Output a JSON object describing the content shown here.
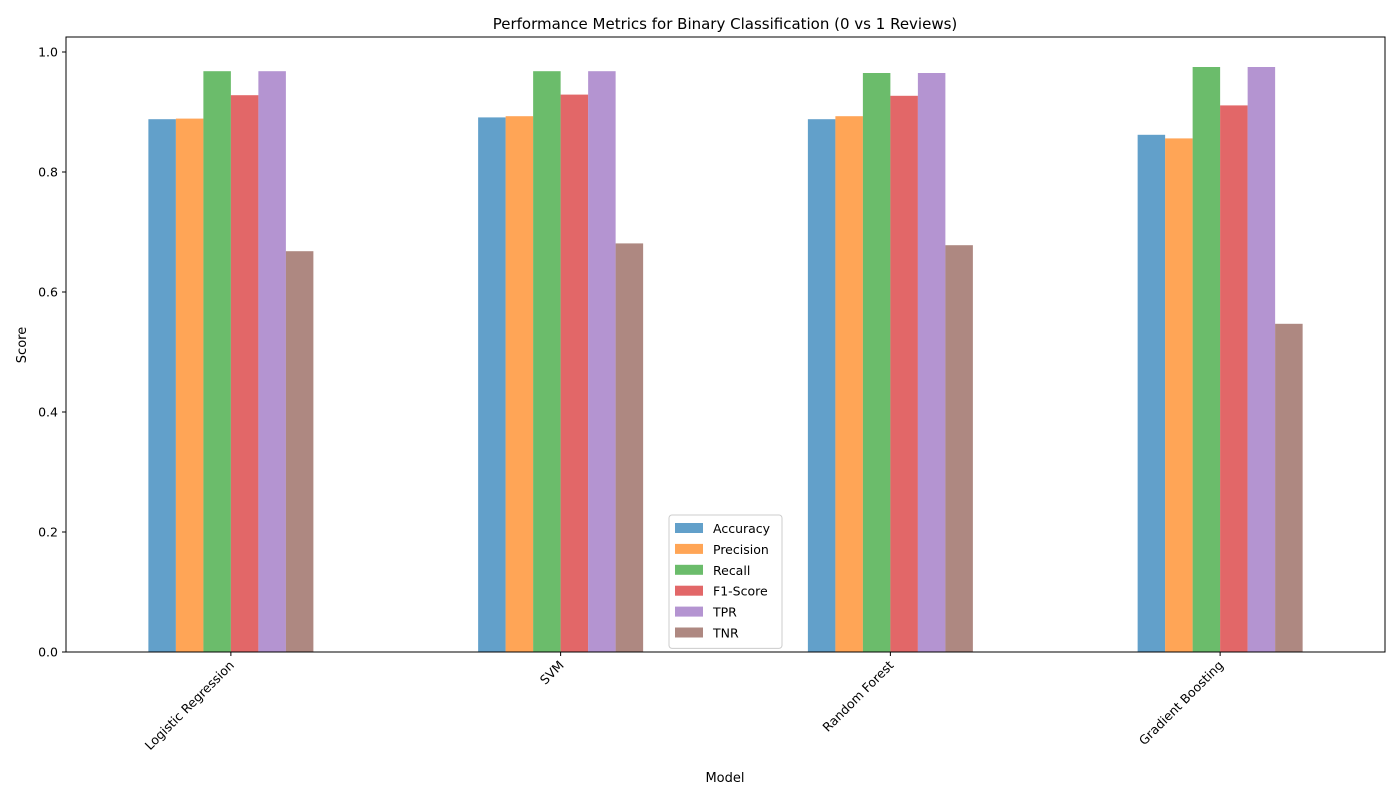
{
  "chart_data": {
    "type": "bar",
    "title": "Performance Metrics for Binary Classification (0 vs 1 Reviews)",
    "xlabel": "Model",
    "ylabel": "Score",
    "ylim": [
      0,
      1.025
    ],
    "yticks": [
      "0.0",
      "0.2",
      "0.4",
      "0.6",
      "0.8",
      "1.0"
    ],
    "categories": [
      "Logistic Regression",
      "SVM",
      "Random Forest",
      "Gradient Boosting"
    ],
    "series": [
      {
        "name": "Accuracy",
        "color": "#1f77b4",
        "values": [
          0.888,
          0.891,
          0.888,
          0.862
        ]
      },
      {
        "name": "Precision",
        "color": "#ff7f0e",
        "values": [
          0.889,
          0.893,
          0.893,
          0.856
        ]
      },
      {
        "name": "Recall",
        "color": "#2ca02c",
        "values": [
          0.968,
          0.968,
          0.965,
          0.975
        ]
      },
      {
        "name": "F1-Score",
        "color": "#d62728",
        "values": [
          0.928,
          0.929,
          0.927,
          0.911
        ]
      },
      {
        "name": "TPR",
        "color": "#9467bd",
        "values": [
          0.968,
          0.968,
          0.965,
          0.975
        ]
      },
      {
        "name": "TNR",
        "color": "#8c564b",
        "values": [
          0.668,
          0.681,
          0.678,
          0.547
        ]
      }
    ],
    "bar_opacity": 0.7,
    "grid": false,
    "legend_position": "lower-center"
  }
}
